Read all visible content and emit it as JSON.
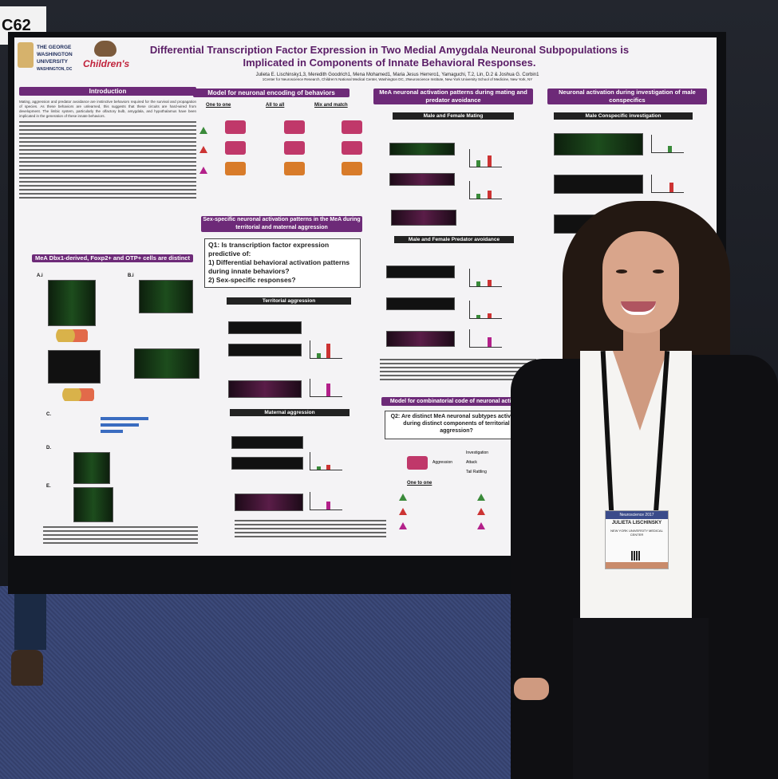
{
  "booth": {
    "code": "C62"
  },
  "poster": {
    "title_line1": "Differential Transcription Factor Expression in Two Medial Amygdala Neuronal Subpopulations is",
    "title_line2": "Implicated in Components of Innate Behavioral Responses.",
    "authors": "Julieta E. Lischinsky1,3, Meredith Goodrich1, Mena Mohamed1, Maria Jesus Herrero1, Yamaguchi, T.2, Lin, D.2 & Joshua G. Corbin1",
    "affiliations": "1Center for Neuroscience Research, Children's National Medical Center, Washington DC, 2Neuroscience Institute, New York University School of Medicine, New York, NY",
    "logo_gw": "THE GEORGE WASHINGTON UNIVERSITY",
    "logo_gw_city": "WASHINGTON, DC",
    "logo_children": "Children's",
    "sections": {
      "introduction": "Introduction",
      "model_encoding": "Model for neuronal encoding of behaviors",
      "mea_activation": "MeA neuronal activation patterns during mating and predator avoidance",
      "male_conspecifics": "Neuronal activation during investigation of male conspecifics",
      "sex_specific": "Sex-specific neuronal activation patterns in the MeA during territorial and maternal aggression",
      "cells_distinct": "MeA Dbx1-derived, Foxp2+ and OTP+ cells are distinct",
      "combinatorial": "Model for combinatorial code of neuronal activation"
    },
    "model_labels": {
      "one_to_one": "One to one",
      "all_to_all": "All to all",
      "mix_and_match": "Mix and match"
    },
    "subheaders": {
      "male_female_mating": "Male and Female Mating",
      "predator_avoidance": "Male and Female Predator avoidance",
      "male_conspecific": "Male Conspecific investigation",
      "territorial": "Territorial aggression",
      "maternal": "Maternal aggression"
    },
    "q1": {
      "lead": "Q1: Is transcription factor expression predictive of:",
      "item1": "1)   Differential behavioral activation patterns during innate behaviors?",
      "item2": "2)   Sex-specific responses?"
    },
    "q2": "Q2: Are distinct MeA neuronal subtypes activated during distinct components of territorial aggression?",
    "aggression_labels": {
      "aggression": "Aggression",
      "investigation": "Investigation",
      "attack": "Attack",
      "tail_rattling": "Tail Rattling"
    },
    "panel_labels": {
      "ai": "A.i",
      "bi": "B.i",
      "c": "C.",
      "d": "D.",
      "e": "E."
    },
    "intro_text": "Mating, aggression and predator avoidance are instinctive behaviors required for the survival and propagation of species. As these behaviors are unlearned, this suggests that these circuits are hard-wired from development. The limbic system, particularly the olfactory bulb, amygdala, and hypothalamus have been implicated in the generation of these innate behaviors."
  },
  "presenter_badge": {
    "event": "Neuroscience 2017",
    "name": "JULIETA LISCHINSKY",
    "affiliation": "NEW YORK UNIVERSITY MEDICAL CENTER"
  },
  "colors": {
    "poster_purple": "#6d2a78",
    "carpet": "#3c4a7a",
    "jacket": "#0f0f12"
  }
}
